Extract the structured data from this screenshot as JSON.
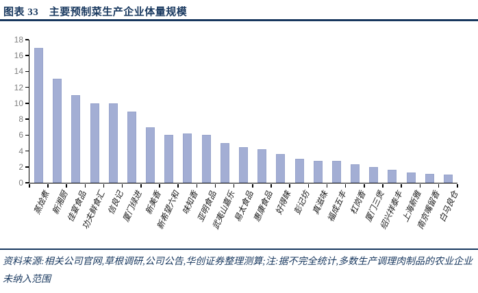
{
  "header": {
    "title": "图表 33　主要预制菜生产企业体量规模"
  },
  "chart_data": {
    "type": "bar",
    "title": "主要预制菜生产企业体量规模",
    "categories": [
      "蒸烩煮",
      "新湘厨",
      "佳宴食品",
      "功夫鲜食汇",
      "信良记",
      "厦门绿进",
      "新美香",
      "新希望六和",
      "味知香",
      "亚明食品",
      "武夷山嘉乐",
      "易太食品",
      "惠康食品",
      "好得睐",
      "彭记坊",
      "真滋味",
      "福成五丰",
      "杠岗香",
      "厦门三煲",
      "绍兴祥泰丰",
      "上海新雅",
      "南京嘴留香",
      "白马良仓"
    ],
    "values": [
      17,
      13.1,
      11,
      10,
      10,
      9,
      7,
      6,
      6.2,
      6,
      5,
      4.5,
      4.2,
      3.6,
      3,
      2.8,
      2.8,
      2.3,
      2,
      1.6,
      1.3,
      1.1,
      1
    ],
    "xlabel": "",
    "ylabel": "",
    "ylim": [
      0,
      18
    ],
    "ytick_step": 2,
    "grid": false,
    "legend": "none",
    "bar_color": "#A3AED4",
    "axis_color": "#000000",
    "tick_label_color": "#7F7F7F"
  },
  "footer": {
    "source_note": "资料来源:相关公司官网,草根调研,公司公告,华创证券整理测算;注:据不完全统计,多数生产调理肉制品的农业企业未纳入范围"
  },
  "colors": {
    "accent_navy": "#17375E"
  }
}
